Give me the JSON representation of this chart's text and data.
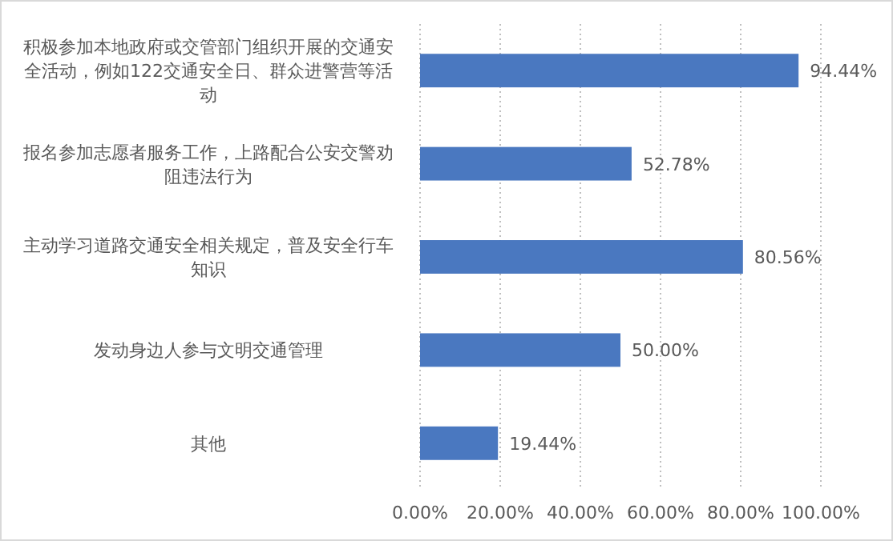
{
  "chart_data": {
    "type": "bar",
    "orientation": "horizontal",
    "categories": [
      "积极参加本地政府或交管部门组织开展的交通安全活动，例如122交通安全日、群众进警营等活动",
      "报名参加志愿者服务工作，上路配合公安交警劝阻违法行为",
      "主动学习道路交通安全相关规定，普及安全行车知识",
      "发动身边人参与文明交通管理",
      "其他"
    ],
    "values": [
      94.44,
      52.78,
      80.56,
      50.0,
      19.44
    ],
    "value_labels": [
      "94.44%",
      "52.78%",
      "80.56%",
      "50.00%",
      "19.44%"
    ],
    "color": "#4a78c0",
    "xlim": [
      0,
      100
    ],
    "xticks": [
      {
        "value": 0,
        "label": "0.00%"
      },
      {
        "value": 20,
        "label": "20.00%"
      },
      {
        "value": 40,
        "label": "40.00%"
      },
      {
        "value": 60,
        "label": "60.00%"
      },
      {
        "value": 80,
        "label": "80.00%"
      },
      {
        "value": 100,
        "label": "100.00%"
      }
    ],
    "grid": "x"
  }
}
